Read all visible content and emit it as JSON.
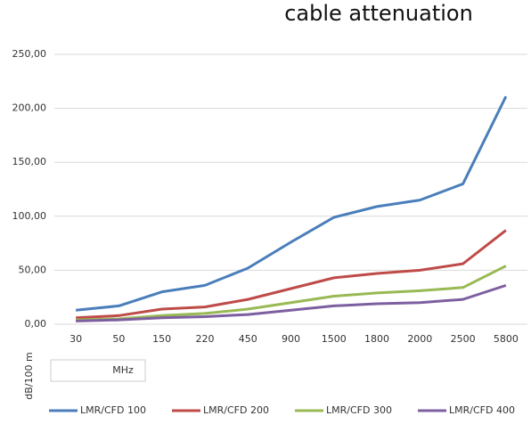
{
  "chart_data": {
    "type": "line",
    "title": "cable attenuation",
    "ylabel": "dB/100 m",
    "xlabel": "MHz",
    "categories": [
      "30",
      "50",
      "150",
      "220",
      "450",
      "900",
      "1500",
      "1800",
      "2000",
      "2500",
      "5800"
    ],
    "series": [
      {
        "name": "LMR/CFD 100",
        "color": "#4a7ebb",
        "values": [
          13,
          17,
          30,
          36,
          52,
          76,
          99,
          109,
          115,
          130,
          211
        ]
      },
      {
        "name": "LMR/CFD 200",
        "color": "#be4b48",
        "values": [
          6,
          8,
          14,
          16,
          23,
          33,
          43,
          47,
          50,
          56,
          87
        ]
      },
      {
        "name": "LMR/CFD 300",
        "color": "#98b954",
        "values": [
          4,
          5,
          8,
          10,
          14,
          20,
          26,
          29,
          31,
          34,
          54
        ]
      },
      {
        "name": "LMR/CFD 400",
        "color": "#7d5fa0",
        "values": [
          3,
          4,
          6,
          7,
          9,
          13,
          17,
          19,
          20,
          23,
          36
        ]
      }
    ],
    "ylim": [
      0,
      250
    ],
    "yticks": [
      {
        "value": 0,
        "label": "0,00"
      },
      {
        "value": 50,
        "label": "50,00"
      },
      {
        "value": 100,
        "label": "100,00"
      },
      {
        "value": 150,
        "label": "150,00"
      },
      {
        "value": 200,
        "label": "200,00"
      },
      {
        "value": 250,
        "label": "250,00"
      }
    ],
    "grid": true,
    "legend": "bottom"
  }
}
